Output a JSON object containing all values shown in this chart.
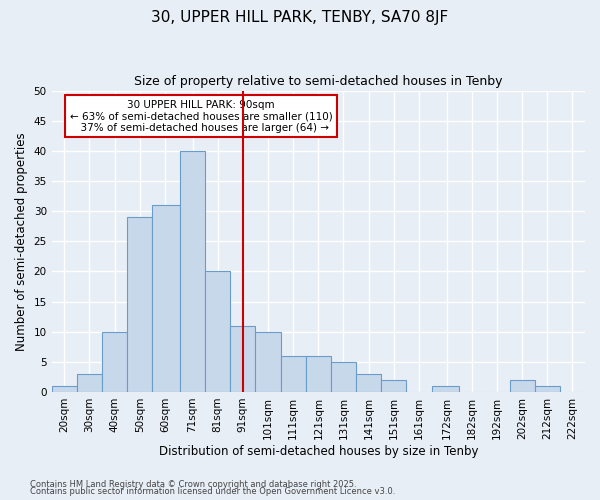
{
  "title": "30, UPPER HILL PARK, TENBY, SA70 8JF",
  "subtitle": "Size of property relative to semi-detached houses in Tenby",
  "xlabel": "Distribution of semi-detached houses by size in Tenby",
  "ylabel": "Number of semi-detached properties",
  "footnote1": "Contains HM Land Registry data © Crown copyright and database right 2025.",
  "footnote2": "Contains public sector information licensed under the Open Government Licence v3.0.",
  "property_label": "30 UPPER HILL PARK: 90sqm",
  "pct_smaller": "63% of semi-detached houses are smaller (110)",
  "pct_larger": "37% of semi-detached houses are larger (64)",
  "bar_labels": [
    "20sqm",
    "30sqm",
    "40sqm",
    "50sqm",
    "60sqm",
    "71sqm",
    "81sqm",
    "91sqm",
    "101sqm",
    "111sqm",
    "121sqm",
    "131sqm",
    "141sqm",
    "151sqm",
    "161sqm",
    "172sqm",
    "182sqm",
    "192sqm",
    "202sqm",
    "212sqm",
    "222sqm"
  ],
  "bar_values": [
    1,
    3,
    10,
    29,
    31,
    40,
    20,
    11,
    10,
    6,
    6,
    5,
    3,
    2,
    0,
    1,
    0,
    0,
    2,
    1,
    0
  ],
  "bar_edges": [
    15,
    25,
    35,
    45,
    55,
    66,
    76,
    86,
    96,
    106,
    116,
    126,
    136,
    146,
    156,
    166,
    177,
    187,
    197,
    207,
    217,
    227
  ],
  "bar_centers": [
    20,
    30,
    40,
    50,
    60,
    71,
    81,
    91,
    101,
    111,
    121,
    131,
    141,
    151,
    161,
    172,
    182,
    192,
    202,
    212,
    222
  ],
  "vline_x": 91,
  "vline_color": "#cc0000",
  "bar_color": "#c8d8eb",
  "bar_edge_color": "#6a9cc9",
  "bg_color": "#e8eef6",
  "ylim": [
    0,
    50
  ],
  "yticks": [
    0,
    5,
    10,
    15,
    20,
    25,
    30,
    35,
    40,
    45,
    50
  ],
  "grid_color": "#ffffff",
  "annotation_box_color": "#cc0000",
  "title_fontsize": 11,
  "subtitle_fontsize": 9,
  "xlabel_fontsize": 8.5,
  "ylabel_fontsize": 8.5,
  "tick_fontsize": 7.5,
  "annotation_fontsize": 7.5,
  "footnote_fontsize": 6.0
}
